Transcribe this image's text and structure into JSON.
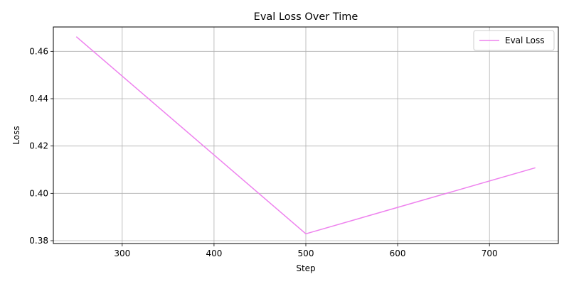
{
  "chart_data": {
    "type": "line",
    "title": "Eval Loss Over Time",
    "xlabel": "Step",
    "ylabel": "Loss",
    "xlim": [
      225,
      775
    ],
    "ylim": [
      0.3788,
      0.4703
    ],
    "xticks": [
      300,
      400,
      500,
      600,
      700
    ],
    "xtick_labels": [
      "300",
      "400",
      "500",
      "600",
      "700"
    ],
    "yticks": [
      0.38,
      0.4,
      0.42,
      0.44,
      0.46
    ],
    "ytick_labels": [
      "0.38",
      "0.40",
      "0.42",
      "0.44",
      "0.46"
    ],
    "grid": true,
    "legend_position": "top-right",
    "series": [
      {
        "name": "Eval Loss",
        "color": "#ee82ee",
        "x": [
          250,
          500,
          750
        ],
        "y": [
          0.4662,
          0.3829,
          0.4108
        ]
      }
    ]
  }
}
